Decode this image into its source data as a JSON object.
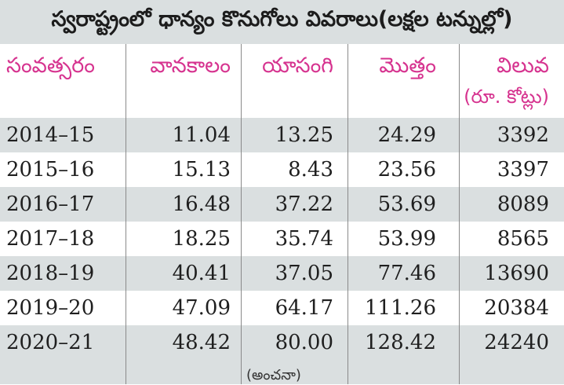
{
  "title": "స్వరాష్ట్రంలో ధాన్యం కొనుగోలు వివరాలు(లక్షల టన్నుల్లో)",
  "headers": {
    "year": "సంవత్సరం",
    "vanakalam": "వానకాలం",
    "yasangi": "యాసంగి",
    "total": "మొత్తం",
    "value": "విలువ",
    "value_unit": "(రూ. కోట్లు)"
  },
  "rows": [
    {
      "year": "2014–15",
      "vanakalam": "11.04",
      "yasangi": "13.25",
      "total": "24.29",
      "value": "3392"
    },
    {
      "year": "2015–16",
      "vanakalam": "15.13",
      "yasangi": "8.43",
      "total": "23.56",
      "value": "3397"
    },
    {
      "year": "2016–17",
      "vanakalam": "16.48",
      "yasangi": "37.22",
      "total": "53.69",
      "value": "8089"
    },
    {
      "year": "2017–18",
      "vanakalam": "18.25",
      "yasangi": "35.74",
      "total": "53.99",
      "value": "8565"
    },
    {
      "year": "2018–19",
      "vanakalam": "40.41",
      "yasangi": "37.05",
      "total": "77.46",
      "value": "13690"
    },
    {
      "year": "2019–20",
      "vanakalam": "47.09",
      "yasangi": "64.17",
      "total": "111.26",
      "value": "20384"
    },
    {
      "year": "2020–21",
      "vanakalam": "48.42",
      "yasangi": "80.00",
      "total": "128.42",
      "value": "24240"
    }
  ],
  "note": "(అంచనా)",
  "colors": {
    "header_text": "#d6338f",
    "shade": "#dadfe0"
  }
}
